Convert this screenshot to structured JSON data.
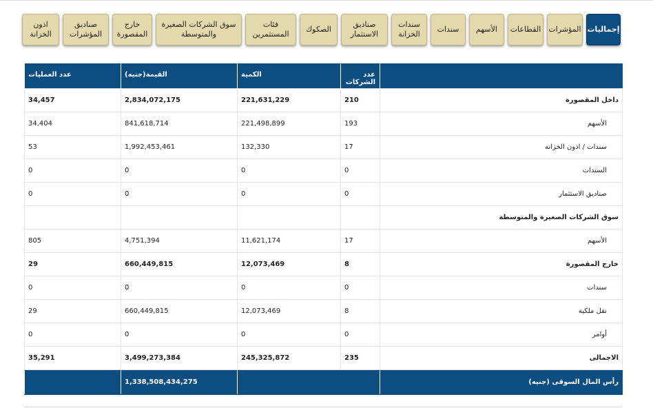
{
  "tabs": [
    {
      "label": "إجماليات",
      "active": true
    },
    {
      "label": "المؤشرات"
    },
    {
      "label": "القطاعات"
    },
    {
      "label": "الأسهم"
    },
    {
      "label": "سندات"
    },
    {
      "label": "سندات\nالخزانة"
    },
    {
      "label": "صناديق\nالاستثمار"
    },
    {
      "label": "الصكوك"
    },
    {
      "label": "فئات\nالمستثمرين"
    },
    {
      "label": "سوق الشركات الصغيرة\nوالمتوسطة"
    },
    {
      "label": "خارج\nالمقصورة"
    },
    {
      "label": "صناديق\nالمؤشرات"
    },
    {
      "label": "اذون\nالخزانة"
    }
  ],
  "table": {
    "headers": {
      "category": "",
      "companies": "عدد الشركات",
      "quantity": "الكمية",
      "value": "القيمة(جنيه)",
      "trades": "عدد العمليات"
    },
    "rows": [
      {
        "label": "داخل المقصورة",
        "companies": "210",
        "quantity": "221,631,229",
        "value": "2,834,072,175",
        "trades": "34,457",
        "type": "bold"
      },
      {
        "label": "الأسهم",
        "companies": "193",
        "quantity": "221,498,899",
        "value": "841,618,714",
        "trades": "34,404",
        "type": "sub"
      },
      {
        "label": "سندات / اذون الخزانه",
        "companies": "17",
        "quantity": "132,330",
        "value": "1,992,453,461",
        "trades": "53",
        "type": "sub"
      },
      {
        "label": "السندات",
        "companies": "0",
        "quantity": "0",
        "value": "0",
        "trades": "0",
        "type": "sub"
      },
      {
        "label": "صناديق الاستثمار",
        "companies": "0",
        "quantity": "0",
        "value": "0",
        "trades": "0",
        "type": "sub"
      },
      {
        "label": "سوق الشركات الصغيرة والمتوسطة",
        "companies": "",
        "quantity": "",
        "value": "",
        "trades": "",
        "type": "section"
      },
      {
        "label": "الأسهم",
        "companies": "17",
        "quantity": "11,621,174",
        "value": "4,751,394",
        "trades": "805",
        "type": "sub"
      },
      {
        "label": "خارج المقصورة",
        "companies": "8",
        "quantity": "12,073,469",
        "value": "660,449,815",
        "trades": "29",
        "type": "bold"
      },
      {
        "label": "سندات",
        "companies": "0",
        "quantity": "0",
        "value": "0",
        "trades": "0",
        "type": "sub"
      },
      {
        "label": "نقل ملكية",
        "companies": "8",
        "quantity": "12,073,469",
        "value": "660,449,815",
        "trades": "29",
        "type": "sub"
      },
      {
        "label": "أوامر",
        "companies": "0",
        "quantity": "0",
        "value": "0",
        "trades": "0",
        "type": "sub"
      },
      {
        "label": "الاجمالى",
        "companies": "235",
        "quantity": "245,325,872",
        "value": "3,499,273,384",
        "trades": "35,291",
        "type": "bold"
      }
    ],
    "footer": {
      "label": "رأس المال السوقى (جنيه)",
      "value": "1,338,508,434,275"
    }
  }
}
